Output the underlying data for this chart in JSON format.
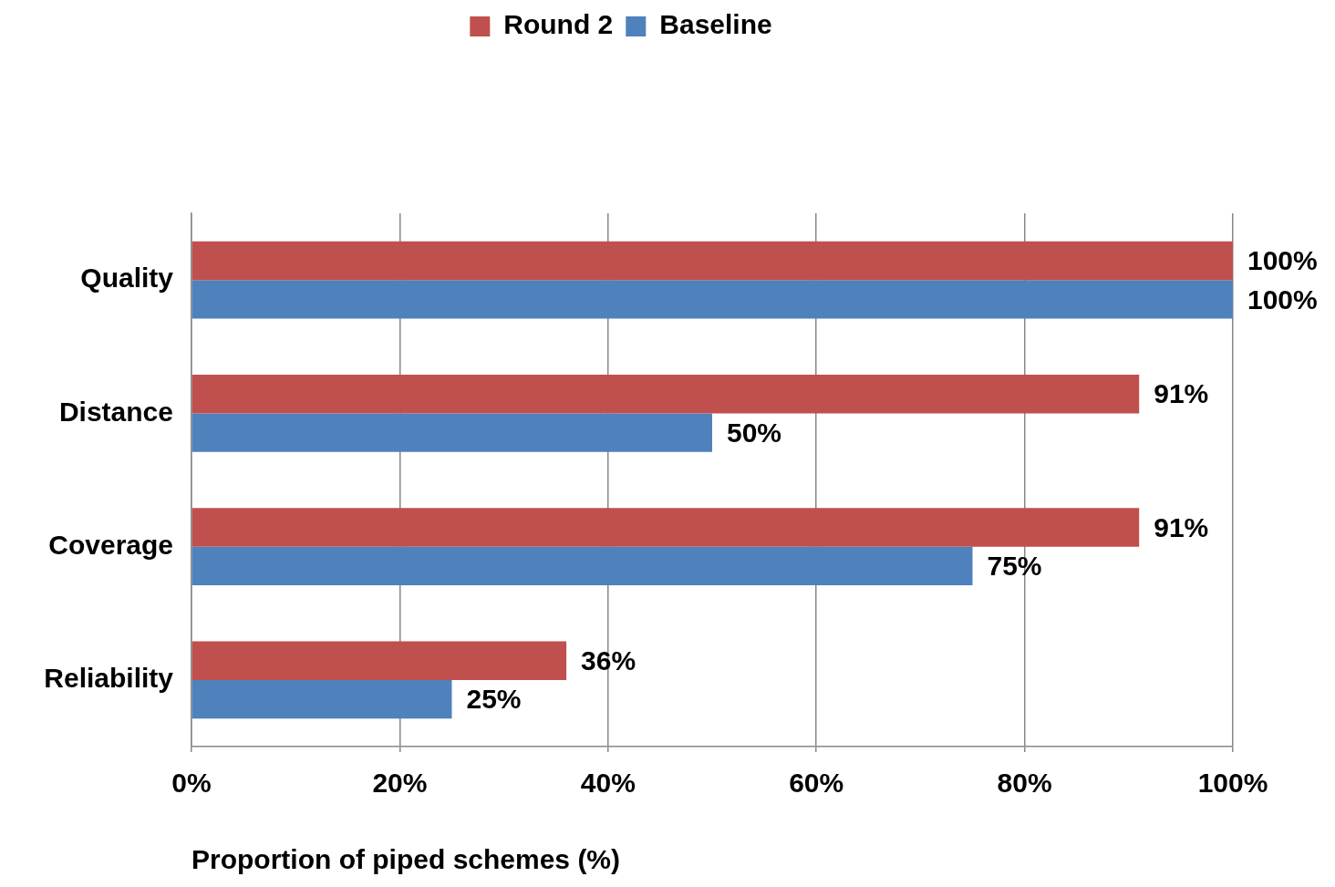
{
  "chart_data": {
    "type": "bar",
    "orientation": "horizontal",
    "categories": [
      "Quality",
      "Distance",
      "Coverage",
      "Reliability"
    ],
    "series": [
      {
        "name": "Round 2",
        "color": "#c0504d",
        "values": [
          100,
          91,
          91,
          36
        ],
        "value_labels": [
          "100%",
          "91%",
          "91%",
          "36%"
        ]
      },
      {
        "name": "Baseline",
        "color": "#4f81bd",
        "values": [
          100,
          50,
          75,
          25
        ],
        "value_labels": [
          "100%",
          "50%",
          "75%",
          "25%"
        ]
      }
    ],
    "xlabel": "Proportion of piped schemes (%)",
    "xlim": [
      0,
      100
    ],
    "xticks": [
      {
        "value": 0,
        "label": "0%"
      },
      {
        "value": 20,
        "label": "20%"
      },
      {
        "value": 40,
        "label": "40%"
      },
      {
        "value": 60,
        "label": "60%"
      },
      {
        "value": 80,
        "label": "80%"
      },
      {
        "value": 100,
        "label": "100%"
      }
    ],
    "grid": "x",
    "legend": "top"
  }
}
